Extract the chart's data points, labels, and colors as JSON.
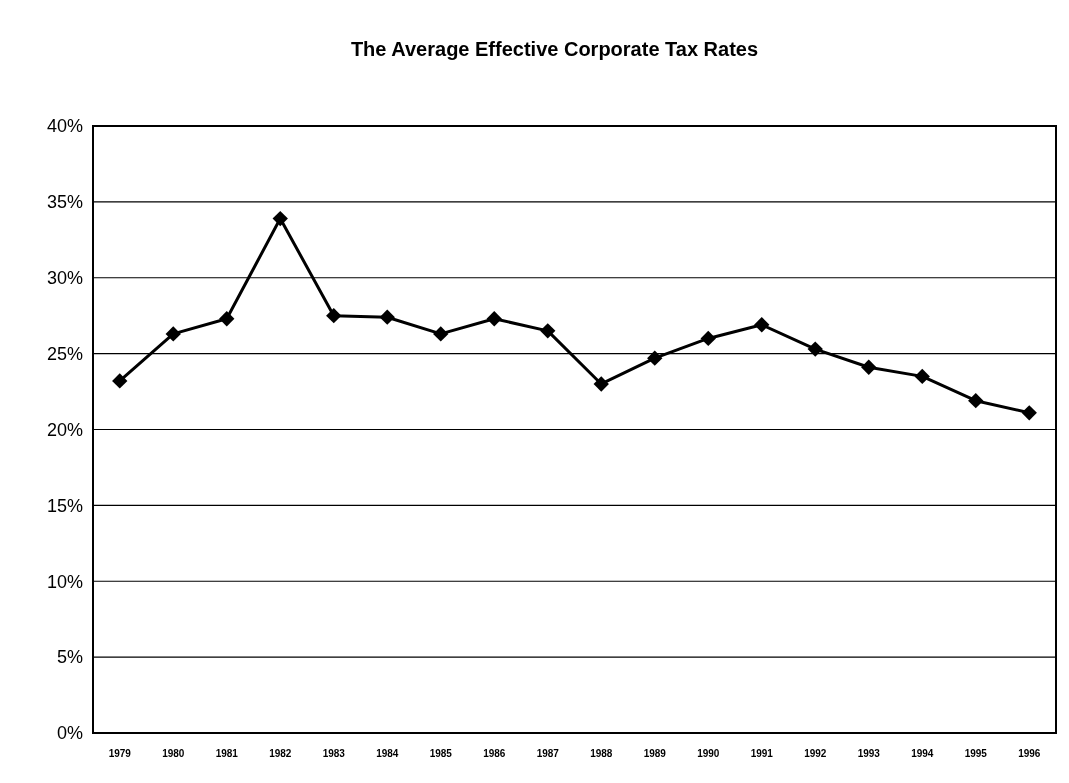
{
  "chart_data": {
    "type": "line",
    "title": "The Average Effective Corporate Tax Rates",
    "categories": [
      "1979",
      "1980",
      "1981",
      "1982",
      "1983",
      "1984",
      "1985",
      "1986",
      "1987",
      "1988",
      "1989",
      "1990",
      "1991",
      "1992",
      "1993",
      "1994",
      "1995",
      "1996"
    ],
    "series": [
      {
        "color": "#000000",
        "values": [
          23.2,
          26.3,
          27.3,
          33.9,
          27.5,
          27.4,
          26.3,
          27.3,
          26.5,
          23.0,
          24.7,
          26.0,
          26.9,
          25.3,
          24.1,
          23.5,
          21.9,
          21.1
        ]
      }
    ],
    "ylim": [
      0,
      40
    ],
    "yticks": [
      {
        "value": 0,
        "label": "0%"
      },
      {
        "value": 5,
        "label": "5%"
      },
      {
        "value": 10,
        "label": "10%"
      },
      {
        "value": 15,
        "label": "15%"
      },
      {
        "value": 20,
        "label": "20%"
      },
      {
        "value": 25,
        "label": "25%"
      },
      {
        "value": 30,
        "label": "30%"
      },
      {
        "value": 35,
        "label": "35%"
      },
      {
        "value": 40,
        "label": "40%"
      }
    ],
    "grid": "y",
    "marker": "diamond",
    "line_style": "solid"
  }
}
